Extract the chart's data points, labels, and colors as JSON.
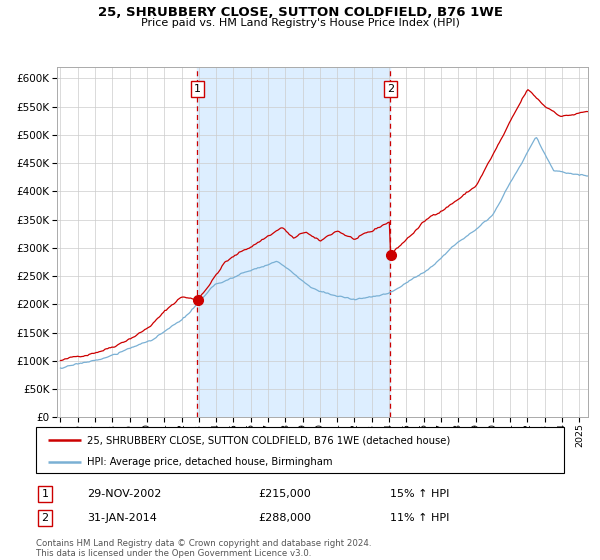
{
  "title": "25, SHRUBBERY CLOSE, SUTTON COLDFIELD, B76 1WE",
  "subtitle": "Price paid vs. HM Land Registry's House Price Index (HPI)",
  "legend_line1": "25, SHRUBBERY CLOSE, SUTTON COLDFIELD, B76 1WE (detached house)",
  "legend_line2": "HPI: Average price, detached house, Birmingham",
  "transaction1": {
    "label": "1",
    "date": "29-NOV-2002",
    "price": 215000,
    "pct": "15%",
    "dir": "↑",
    "note": "HPI"
  },
  "transaction2": {
    "label": "2",
    "date": "31-JAN-2014",
    "price": 288000,
    "pct": "11%",
    "dir": "↑",
    "note": "HPI"
  },
  "footer": "Contains HM Land Registry data © Crown copyright and database right 2024.\nThis data is licensed under the Open Government Licence v3.0.",
  "color_red": "#cc0000",
  "color_blue": "#7ab0d4",
  "color_bg": "#ddeeff",
  "ylim": [
    0,
    620000
  ],
  "yticks": [
    0,
    50000,
    100000,
    150000,
    200000,
    250000,
    300000,
    350000,
    400000,
    450000,
    500000,
    550000,
    600000
  ],
  "year_start": 1995,
  "year_end": 2025,
  "t1_year": 2002.92,
  "t2_year": 2014.08,
  "t1_price": 215000,
  "t2_price": 288000
}
